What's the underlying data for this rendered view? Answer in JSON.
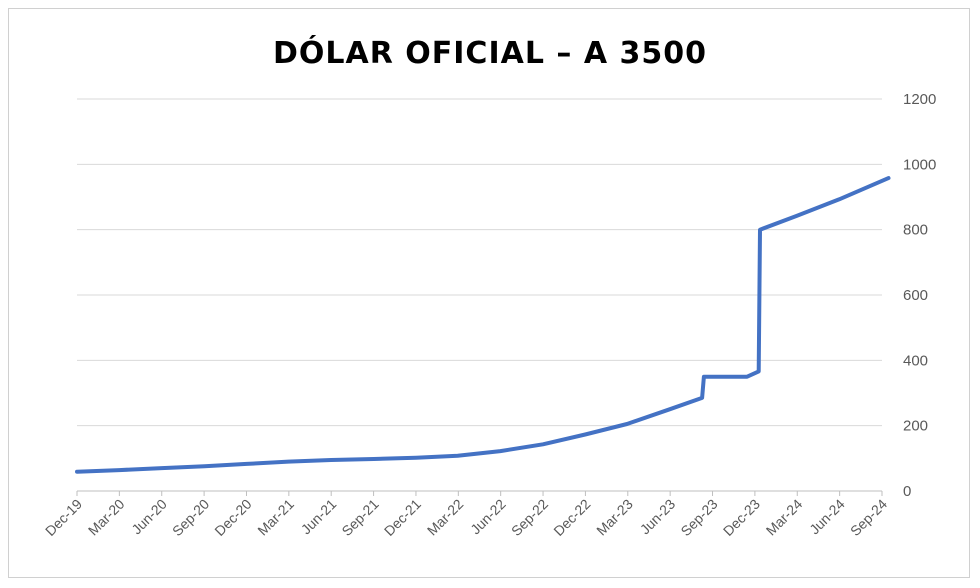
{
  "chart_data": {
    "type": "line",
    "title": "DÓLAR OFICIAL – A 3500",
    "xlabel": "",
    "ylabel": "",
    "ylim": [
      0,
      1200
    ],
    "yticks": [
      0,
      200,
      400,
      600,
      800,
      1000,
      1200
    ],
    "y_axis_position": "right",
    "grid": true,
    "legend": "none",
    "x_tick_labels": [
      "Dec-19",
      "Mar-20",
      "Jun-20",
      "Sep-20",
      "Dec-20",
      "Mar-21",
      "Jun-21",
      "Sep-21",
      "Dec-21",
      "Mar-22",
      "Jun-22",
      "Sep-22",
      "Dec-22",
      "Mar-23",
      "Jun-23",
      "Sep-23",
      "Dec-23",
      "Mar-24",
      "Jun-24",
      "Sep-24"
    ],
    "series": [
      {
        "color": "#4472C4",
        "points": [
          {
            "x": "2019-12-01",
            "y": 59
          },
          {
            "x": "2020-03-01",
            "y": 64
          },
          {
            "x": "2020-06-01",
            "y": 70
          },
          {
            "x": "2020-09-01",
            "y": 76
          },
          {
            "x": "2020-12-01",
            "y": 83
          },
          {
            "x": "2021-03-01",
            "y": 90
          },
          {
            "x": "2021-06-01",
            "y": 95
          },
          {
            "x": "2021-09-01",
            "y": 98
          },
          {
            "x": "2021-12-01",
            "y": 102
          },
          {
            "x": "2022-03-01",
            "y": 108
          },
          {
            "x": "2022-06-01",
            "y": 122
          },
          {
            "x": "2022-09-01",
            "y": 143
          },
          {
            "x": "2022-12-01",
            "y": 173
          },
          {
            "x": "2023-03-01",
            "y": 205
          },
          {
            "x": "2023-06-01",
            "y": 250
          },
          {
            "x": "2023-08-10",
            "y": 285
          },
          {
            "x": "2023-08-14",
            "y": 350
          },
          {
            "x": "2023-11-15",
            "y": 350
          },
          {
            "x": "2023-12-10",
            "y": 366
          },
          {
            "x": "2023-12-13",
            "y": 800
          },
          {
            "x": "2024-03-01",
            "y": 842
          },
          {
            "x": "2024-06-01",
            "y": 893
          },
          {
            "x": "2024-09-15",
            "y": 958
          }
        ]
      }
    ]
  }
}
